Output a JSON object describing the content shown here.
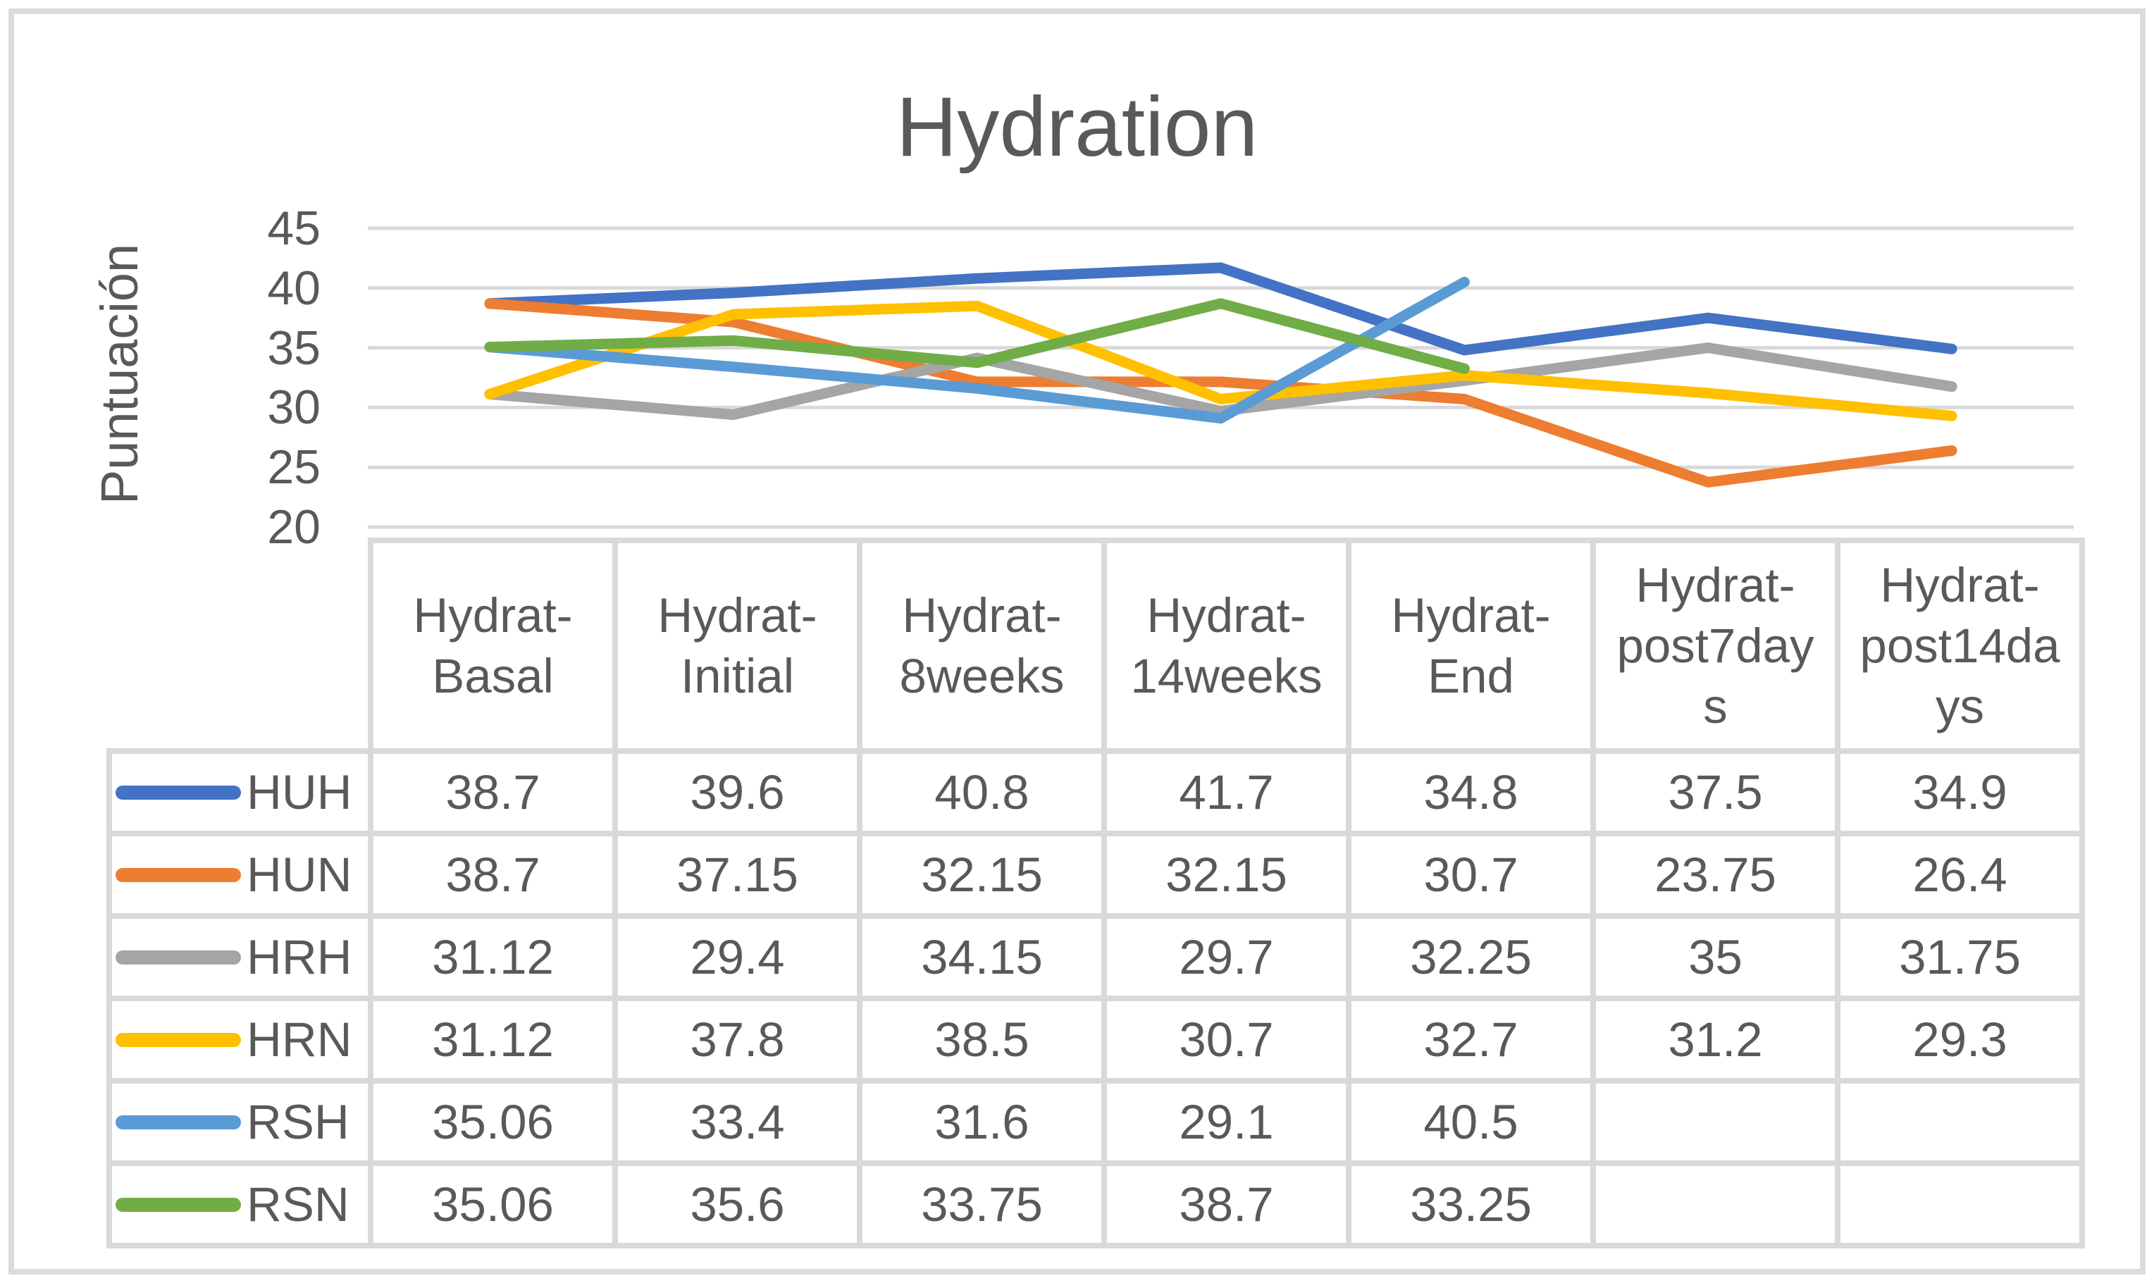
{
  "title": "Hydration",
  "y_axis": {
    "label": "Puntuación",
    "ticks": [
      45,
      40,
      35,
      30,
      25,
      20
    ],
    "min": 20,
    "max": 45
  },
  "chart_data": {
    "type": "line",
    "title": "Hydration",
    "ylabel": "Puntuación",
    "ylim": [
      20,
      45
    ],
    "grid": true,
    "legend_position": "data-table-left",
    "categories": [
      "Hydrat-Basal",
      "Hydrat-Initial",
      "Hydrat-8weeks",
      "Hydrat-14weeks",
      "Hydrat-End",
      "Hydrat-post7days",
      "Hydrat-post14days"
    ],
    "series": [
      {
        "name": "HUH",
        "color": "#4472C4",
        "values": [
          38.7,
          39.6,
          40.8,
          41.7,
          34.8,
          37.5,
          34.9
        ]
      },
      {
        "name": "HUN",
        "color": "#ED7D31",
        "values": [
          38.7,
          37.15,
          32.15,
          32.15,
          30.7,
          23.75,
          26.4
        ]
      },
      {
        "name": "HRH",
        "color": "#A5A5A5",
        "values": [
          31.12,
          29.4,
          34.15,
          29.7,
          32.25,
          35,
          31.75
        ]
      },
      {
        "name": "HRN",
        "color": "#FFC000",
        "values": [
          31.12,
          37.8,
          38.5,
          30.7,
          32.7,
          31.2,
          29.3
        ]
      },
      {
        "name": "RSH",
        "color": "#5B9BD5",
        "values": [
          35.06,
          33.4,
          31.6,
          29.1,
          40.5,
          null,
          null
        ]
      },
      {
        "name": "RSN",
        "color": "#70AD47",
        "values": [
          35.06,
          35.6,
          33.75,
          38.7,
          33.25,
          null,
          null
        ]
      }
    ]
  },
  "colors": {
    "text": "#595959",
    "gridline": "#D9D9D9",
    "table_border": "#D9D9D9",
    "frame_border": "#DBDBDB",
    "background": "#FFFFFF"
  }
}
